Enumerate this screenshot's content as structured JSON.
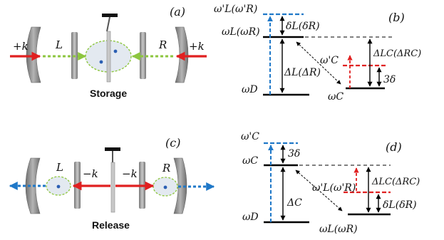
{
  "panels": {
    "a": {
      "tag": "(a)",
      "left_arrow_label": "+k",
      "right_arrow_label": "+k",
      "left_mode": "L",
      "right_mode": "R",
      "caption": "Storage",
      "colors": {
        "drive": "#e02020",
        "mode_arrow": "#8dc63f",
        "cavity": "#dfe6ee",
        "mirror": "#8c8c8c"
      }
    },
    "b": {
      "tag": "(b)",
      "top_level": "ω'L(ω'R)",
      "mid_level": "ωL(ωR)",
      "bottom_level": "ωD",
      "delta_small": "δL(δR)",
      "delta_big": "ΔL(ΔR)",
      "delta_right": "ΔLC(ΔRC)",
      "shifted_level": "ω'C",
      "cavity_level": "ωC",
      "three_delta": "3δ",
      "colors": {
        "pump": "#1f78c8",
        "shift": "#e02020",
        "level": "#000000"
      }
    },
    "c": {
      "tag": "(c)",
      "left_arrow_label": "−k",
      "right_arrow_label": "−k",
      "left_mode": "L",
      "right_mode": "R",
      "caption": "Release",
      "colors": {
        "drive": "#e02020",
        "emit": "#1f78c8",
        "cavity": "#dfe6ee",
        "mirror": "#8c8c8c"
      }
    },
    "d": {
      "tag": "(d)",
      "top_level": "ω'C",
      "mid_level": "ωC",
      "bottom_level": "ωD",
      "three_delta": "3δ",
      "delta_big": "ΔC",
      "delta_right": "ΔLC(ΔRC)",
      "shifted_level": "ω'L(ω'R)",
      "delta_small": "δL(δR)",
      "lower_level": "ωL(ωR)",
      "colors": {
        "pump": "#1f78c8",
        "shift": "#e02020",
        "level": "#000000"
      }
    }
  }
}
